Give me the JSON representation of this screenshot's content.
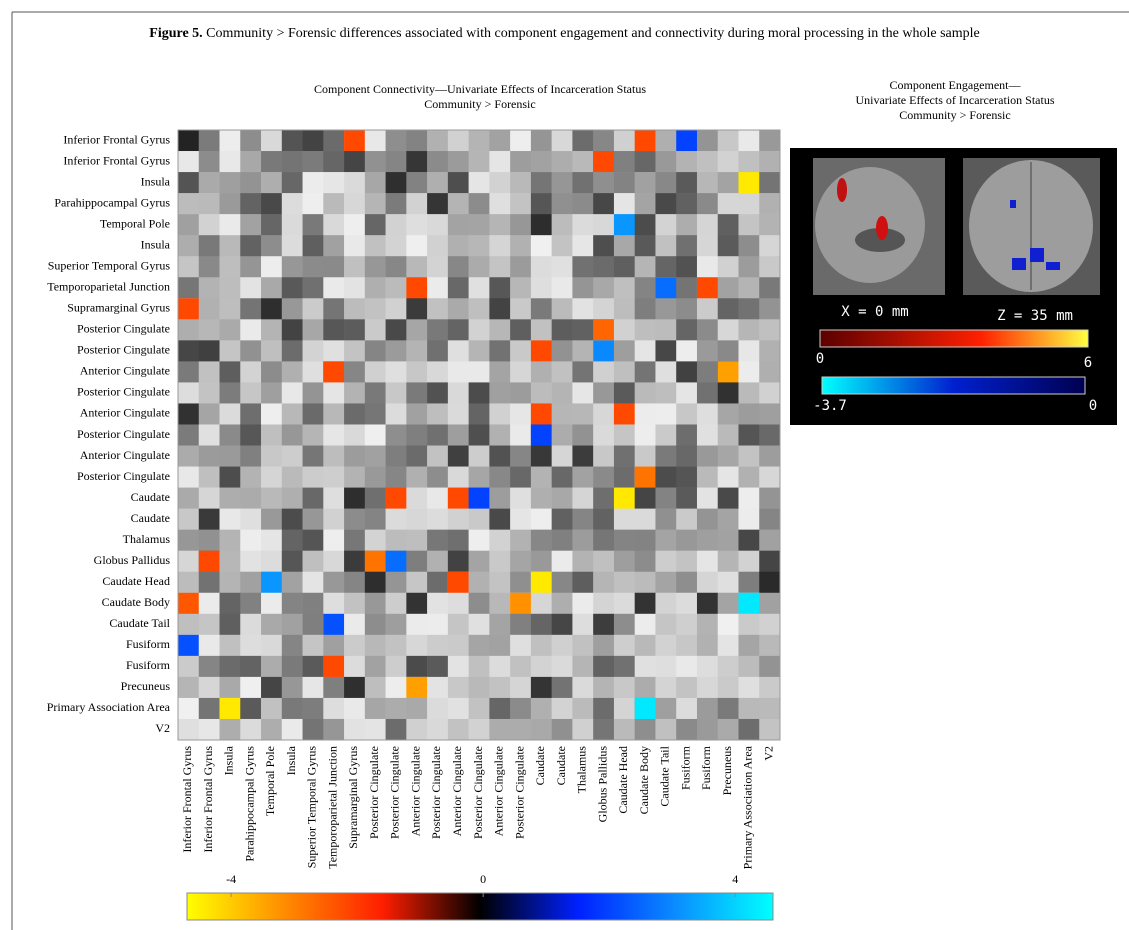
{
  "figure": {
    "label": "Figure 5.",
    "caption": "Community > Forensic differences associated with component engagement and connectivity during moral processing in the whole sample"
  },
  "chart_data": {
    "type": "heatmap",
    "title": [
      "Component Connectivity—Univariate Effects of  Incarceration Status",
      "Community > Forensic"
    ],
    "rows": [
      "Inferior Frontal Gyrus",
      "Inferior Frontal Gyrus",
      "Insula",
      "Parahippocampal Gyrus",
      "Temporal Pole",
      "Insula",
      "Superior Temporal Gyrus",
      "Temporoparietal Junction",
      "Supramarginal Gyrus",
      "Posterior Cingulate",
      "Posterior Cingulate",
      "Anterior Cingulate",
      "Posterior Cingulate",
      "Anterior Cingulate",
      "Posterior Cingulate",
      "Anterior Cingulate",
      "Posterior Cingulate",
      "Caudate",
      "Caudate",
      "Thalamus",
      "Globus Pallidus",
      "Caudate Head",
      "Caudate Body",
      "Caudate Tail",
      "Fusiform",
      "Fusiform",
      "Precuneus",
      "Primary Association Area",
      "V2"
    ],
    "columns": [
      "Inferior Frontal Gyrus",
      "Inferior Frontal Gyrus",
      "Insula",
      "Parahippocampal Gyrus",
      "Temporal Pole",
      "Insula",
      "Superior Temporal Gyrus",
      "Temporoparietal Junction",
      "Supramarginal Gyrus",
      "Posterior Cingulate",
      "Posterior Cingulate",
      "Anterior Cingulate",
      "Posterior Cingulate",
      "Anterior Cingulate",
      "Posterior Cingulate",
      "Anterior Cingulate",
      "Posterior Cingulate",
      "Caudate",
      "Caudate",
      "Thalamus",
      "Globus Pallidus",
      "Caudate Head",
      "Caudate Body",
      "Caudate Tail",
      "Fusiform",
      "Fusiform",
      "Precuneus",
      "Primary Association Area",
      "V2"
    ],
    "values": [
      [
        null,
        null,
        null,
        null,
        null,
        null,
        null,
        null,
        -2.2,
        null,
        null,
        null,
        null,
        null,
        null,
        null,
        null,
        null,
        null,
        null,
        null,
        null,
        -2.2,
        null,
        2.0,
        null,
        null,
        null,
        null
      ],
      [
        null,
        null,
        null,
        null,
        null,
        null,
        null,
        null,
        null,
        null,
        null,
        null,
        null,
        null,
        null,
        null,
        null,
        null,
        null,
        null,
        -2.2,
        null,
        null,
        null,
        null,
        null,
        null,
        null,
        null
      ],
      [
        null,
        null,
        null,
        null,
        null,
        null,
        null,
        null,
        null,
        null,
        null,
        null,
        null,
        null,
        null,
        null,
        null,
        null,
        null,
        null,
        null,
        null,
        null,
        null,
        null,
        null,
        null,
        -4.4,
        null
      ],
      [
        null,
        null,
        null,
        null,
        null,
        null,
        null,
        null,
        null,
        null,
        null,
        null,
        null,
        null,
        null,
        null,
        null,
        null,
        null,
        null,
        null,
        null,
        null,
        null,
        null,
        null,
        null,
        null,
        null
      ],
      [
        null,
        null,
        null,
        null,
        null,
        null,
        null,
        null,
        null,
        null,
        null,
        null,
        null,
        null,
        null,
        null,
        null,
        null,
        null,
        null,
        null,
        3.2,
        null,
        null,
        null,
        null,
        null,
        null,
        null
      ],
      [
        null,
        null,
        null,
        null,
        null,
        null,
        null,
        null,
        null,
        null,
        null,
        null,
        null,
        null,
        null,
        null,
        null,
        null,
        null,
        null,
        null,
        null,
        null,
        null,
        null,
        null,
        null,
        null,
        null
      ],
      [
        null,
        null,
        null,
        null,
        null,
        null,
        null,
        null,
        null,
        null,
        null,
        null,
        null,
        null,
        null,
        null,
        null,
        null,
        null,
        null,
        null,
        null,
        null,
        null,
        null,
        null,
        null,
        null,
        null
      ],
      [
        null,
        null,
        null,
        null,
        null,
        null,
        null,
        null,
        null,
        null,
        null,
        -2.2,
        null,
        null,
        null,
        null,
        null,
        null,
        null,
        null,
        null,
        null,
        null,
        2.6,
        null,
        -2.2,
        null,
        null,
        null
      ],
      [
        -2.2,
        null,
        null,
        null,
        null,
        null,
        null,
        null,
        null,
        null,
        null,
        null,
        null,
        null,
        null,
        null,
        null,
        null,
        null,
        null,
        null,
        null,
        null,
        null,
        null,
        null,
        null,
        null,
        null
      ],
      [
        null,
        null,
        null,
        null,
        null,
        null,
        null,
        null,
        null,
        null,
        null,
        null,
        null,
        null,
        null,
        null,
        null,
        null,
        null,
        null,
        -2.6,
        null,
        null,
        null,
        null,
        null,
        null,
        null,
        null
      ],
      [
        null,
        null,
        null,
        null,
        null,
        null,
        null,
        null,
        null,
        null,
        null,
        null,
        null,
        null,
        null,
        null,
        null,
        -2.2,
        null,
        null,
        3.0,
        null,
        null,
        null,
        null,
        null,
        null,
        null,
        null
      ],
      [
        null,
        null,
        null,
        null,
        null,
        null,
        null,
        -2.2,
        null,
        null,
        null,
        null,
        null,
        null,
        null,
        null,
        null,
        null,
        null,
        null,
        null,
        null,
        null,
        null,
        null,
        null,
        -3.4,
        null,
        null
      ],
      [
        null,
        null,
        null,
        null,
        null,
        null,
        null,
        null,
        null,
        null,
        null,
        null,
        null,
        null,
        null,
        null,
        null,
        null,
        null,
        null,
        null,
        null,
        null,
        null,
        null,
        null,
        null,
        null,
        null
      ],
      [
        null,
        null,
        null,
        null,
        null,
        null,
        null,
        null,
        null,
        null,
        null,
        null,
        null,
        null,
        null,
        null,
        null,
        -2.2,
        null,
        null,
        null,
        -2.2,
        null,
        null,
        null,
        null,
        null,
        null,
        null
      ],
      [
        null,
        null,
        null,
        null,
        null,
        null,
        null,
        null,
        null,
        null,
        null,
        null,
        null,
        null,
        null,
        null,
        null,
        2.0,
        null,
        null,
        null,
        null,
        null,
        null,
        null,
        null,
        null,
        null,
        null
      ],
      [
        null,
        null,
        null,
        null,
        null,
        null,
        null,
        null,
        null,
        null,
        null,
        null,
        null,
        null,
        null,
        null,
        null,
        null,
        null,
        null,
        null,
        null,
        null,
        null,
        null,
        null,
        null,
        null,
        null
      ],
      [
        null,
        null,
        null,
        null,
        null,
        null,
        null,
        null,
        null,
        null,
        null,
        null,
        null,
        null,
        null,
        null,
        null,
        null,
        null,
        null,
        null,
        null,
        -2.8,
        null,
        null,
        null,
        null,
        null,
        null
      ],
      [
        null,
        null,
        null,
        null,
        null,
        null,
        null,
        null,
        null,
        null,
        -2.2,
        null,
        null,
        -2.2,
        2.0,
        null,
        null,
        null,
        null,
        null,
        null,
        -4.4,
        null,
        null,
        null,
        null,
        null,
        null,
        null
      ],
      [
        null,
        null,
        null,
        null,
        null,
        null,
        null,
        null,
        null,
        null,
        null,
        null,
        null,
        null,
        null,
        null,
        null,
        null,
        null,
        null,
        null,
        null,
        null,
        null,
        null,
        null,
        null,
        null,
        null
      ],
      [
        null,
        null,
        null,
        null,
        null,
        null,
        null,
        null,
        null,
        null,
        null,
        null,
        null,
        null,
        null,
        null,
        null,
        null,
        null,
        null,
        null,
        null,
        null,
        null,
        null,
        null,
        null,
        null,
        null
      ],
      [
        null,
        -2.2,
        null,
        null,
        null,
        null,
        null,
        null,
        null,
        -2.8,
        2.6,
        null,
        null,
        null,
        null,
        null,
        null,
        null,
        null,
        null,
        null,
        null,
        null,
        null,
        null,
        null,
        null,
        null,
        null
      ],
      [
        null,
        null,
        null,
        null,
        3.2,
        null,
        null,
        null,
        null,
        null,
        null,
        null,
        null,
        -2.2,
        null,
        null,
        null,
        -4.4,
        null,
        null,
        null,
        null,
        null,
        null,
        null,
        null,
        null,
        null,
        null
      ],
      [
        -2.4,
        null,
        null,
        null,
        null,
        null,
        null,
        null,
        null,
        null,
        null,
        null,
        null,
        null,
        null,
        null,
        -3.2,
        null,
        null,
        null,
        null,
        null,
        null,
        null,
        null,
        null,
        null,
        4.3,
        null
      ],
      [
        null,
        null,
        null,
        null,
        null,
        null,
        null,
        2.2,
        null,
        null,
        null,
        null,
        null,
        null,
        null,
        null,
        null,
        null,
        null,
        null,
        null,
        null,
        null,
        null,
        null,
        null,
        null,
        null,
        null
      ],
      [
        2.2,
        null,
        null,
        null,
        null,
        null,
        null,
        null,
        null,
        null,
        null,
        null,
        null,
        null,
        null,
        null,
        null,
        null,
        null,
        null,
        null,
        null,
        null,
        null,
        null,
        null,
        null,
        null,
        null
      ],
      [
        null,
        null,
        null,
        null,
        null,
        null,
        null,
        -2.2,
        null,
        null,
        null,
        null,
        null,
        null,
        null,
        null,
        null,
        null,
        null,
        null,
        null,
        null,
        null,
        null,
        null,
        null,
        null,
        null,
        null
      ],
      [
        null,
        null,
        null,
        null,
        null,
        null,
        null,
        null,
        null,
        null,
        null,
        -3.4,
        null,
        null,
        null,
        null,
        null,
        null,
        null,
        null,
        null,
        null,
        null,
        null,
        null,
        null,
        null,
        null,
        null
      ],
      [
        null,
        null,
        -4.4,
        null,
        null,
        null,
        null,
        null,
        null,
        null,
        null,
        null,
        null,
        null,
        null,
        null,
        null,
        null,
        null,
        null,
        null,
        null,
        4.3,
        null,
        null,
        null,
        null,
        null,
        null
      ],
      [
        null,
        null,
        null,
        null,
        null,
        null,
        null,
        null,
        null,
        null,
        null,
        null,
        null,
        null,
        null,
        null,
        null,
        null,
        null,
        null,
        null,
        null,
        null,
        null,
        null,
        null,
        null,
        null,
        null
      ]
    ],
    "colormap": [
      "#ffff00",
      "#ff8c00",
      "#ff1e00",
      "#000000",
      "#0020ff",
      "#0a8cff",
      "#00ffff"
    ],
    "clim": [
      -4.7,
      4.6
    ],
    "cticks": [
      -4,
      0,
      4
    ]
  },
  "engagement_panel": {
    "title": [
      "Component Engagement—",
      "Univariate Effects of  Incarceration Status",
      "Community > Forensic"
    ],
    "slice_labels": [
      "X = 0 mm",
      "Z = 35 mm"
    ],
    "positive_clim": [
      0,
      6
    ],
    "negative_clim": [
      -3.7,
      0
    ]
  }
}
